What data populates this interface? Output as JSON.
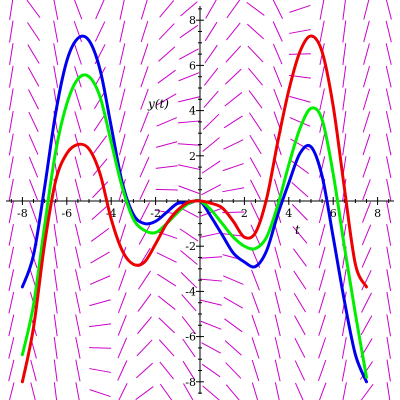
{
  "chart_data": {
    "type": "line",
    "xlabel": "t",
    "ylabel": "y(t)",
    "xlim": [
      -8.6,
      8.6
    ],
    "ylim": [
      -8.6,
      8.6
    ],
    "x_ticks": [
      -8,
      -6,
      -4,
      -2,
      2,
      4,
      6,
      8
    ],
    "y_ticks": [
      -8,
      -6,
      -4,
      -2,
      2,
      4,
      6,
      8
    ],
    "x_tick_labels": [
      "-8",
      "-6",
      "-4",
      "-2",
      "2",
      "4",
      "6",
      "8"
    ],
    "y_tick_labels": [
      "-8",
      "-6",
      "-4",
      "-2",
      "2",
      "4",
      "6",
      "8"
    ],
    "grid": false,
    "direction_field": {
      "present": true,
      "color": "#cc00cc"
    },
    "series": [
      {
        "color": "#0000ee",
        "x": [
          -8,
          -7.5,
          -7,
          -6.5,
          -6,
          -5.5,
          -5,
          -4.5,
          -4,
          -3.5,
          -3,
          -2.5,
          -2,
          -1.5,
          -1,
          -0.5,
          0,
          0.5,
          1,
          1.5,
          2,
          2.5,
          3,
          3.5,
          4,
          4.5,
          5,
          5.5,
          6,
          6.5,
          7,
          7.5
        ],
        "y": [
          -3.8,
          -2.4,
          0.6,
          3.9,
          6.2,
          7.2,
          7.1,
          5.8,
          3.3,
          0.8,
          -0.6,
          -1.0,
          -0.9,
          -0.5,
          -0.1,
          -0.1,
          0,
          -0.7,
          -1.5,
          -2.3,
          -2.7,
          -2.9,
          -2.2,
          -0.6,
          0.8,
          2.1,
          2.4,
          1.1,
          -1.6,
          -4.4,
          -6.8,
          -8.0
        ]
      },
      {
        "color": "#00ee00",
        "x": [
          -8,
          -7.5,
          -7,
          -6.5,
          -6,
          -5.5,
          -5,
          -4.5,
          -4,
          -3.5,
          -3,
          -2.5,
          -2,
          -1.5,
          -1,
          -0.5,
          0,
          0.5,
          1,
          1.5,
          2,
          2.5,
          3,
          3.5,
          4,
          4.5,
          5,
          5.5,
          6,
          6.5,
          7,
          7.5
        ],
        "y": [
          -6.8,
          -4.6,
          -1.1,
          2.2,
          4.3,
          5.4,
          5.5,
          4.6,
          2.6,
          0.6,
          -0.8,
          -1.3,
          -1.4,
          -1.0,
          -0.5,
          -0.1,
          0,
          -0.4,
          -1.0,
          -1.6,
          -2.0,
          -2.1,
          -1.6,
          -0.2,
          1.6,
          3.2,
          4.1,
          3.6,
          1.2,
          -2.0,
          -5.0,
          -7.8
        ]
      },
      {
        "color": "#ee0000",
        "x": [
          -8,
          -7.5,
          -7,
          -6.5,
          -6,
          -5.5,
          -5,
          -4.5,
          -4,
          -3.5,
          -3,
          -2.5,
          -2,
          -1.5,
          -1,
          -0.5,
          0,
          0.5,
          1,
          1.5,
          2,
          2.5,
          3,
          3.5,
          4,
          4.5,
          5,
          5.5,
          6,
          6.5,
          7,
          7.5
        ],
        "y": [
          -8.0,
          -5.6,
          -1.9,
          0.9,
          2.1,
          2.5,
          2.3,
          1.2,
          -0.8,
          -2.2,
          -2.8,
          -2.7,
          -1.9,
          -1.0,
          -0.4,
          -0.05,
          0,
          -0.1,
          -0.3,
          -0.9,
          -1.6,
          -1.4,
          0.1,
          2.6,
          4.9,
          6.6,
          7.3,
          6.6,
          4.2,
          0.6,
          -2.8,
          -3.8
        ]
      }
    ]
  }
}
